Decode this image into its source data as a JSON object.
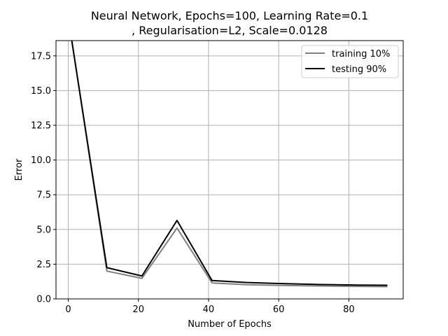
{
  "chart_data": {
    "type": "line",
    "title_line1": "Neural Network, Epochs=100, Learning Rate=0.1",
    "title_line2": ", Regularisation=L2, Scale=0.0128",
    "xlabel": "Number of Epochs",
    "ylabel": "Error",
    "xlim": [
      -3.5,
      95.5
    ],
    "ylim": [
      0,
      18.6
    ],
    "xticks": [
      0,
      20,
      40,
      60,
      80
    ],
    "xtick_labels": [
      "0",
      "20",
      "40",
      "60",
      "80"
    ],
    "yticks": [
      0,
      2.5,
      5,
      7.5,
      10,
      12.5,
      15,
      17.5
    ],
    "ytick_labels": [
      "0.0",
      "2.5",
      "5.0",
      "7.5",
      "10.0",
      "12.5",
      "15.0",
      "17.5"
    ],
    "grid": true,
    "legend_position": "top-right",
    "x": [
      1,
      11,
      21,
      31,
      41,
      51,
      61,
      71,
      81,
      91
    ],
    "series": [
      {
        "name": "training 10%",
        "color": "#808080",
        "values": [
          18.6,
          2.0,
          1.48,
          5.1,
          1.15,
          1.02,
          0.97,
          0.93,
          0.9,
          0.88
        ]
      },
      {
        "name": "testing 90%",
        "color": "#000000",
        "values": [
          18.6,
          2.25,
          1.65,
          5.65,
          1.32,
          1.18,
          1.1,
          1.04,
          1.0,
          0.98
        ]
      }
    ]
  }
}
